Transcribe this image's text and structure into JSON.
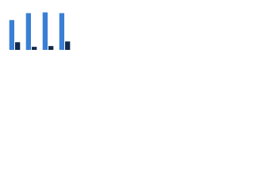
{
  "chart_data": {
    "type": "bar",
    "categories": [
      null,
      null,
      null,
      null
    ],
    "series": [
      {
        "color": "#3a7fd5",
        "values": [
          39,
          48,
          49,
          48
        ]
      },
      {
        "color": "#10294d",
        "values": [
          10,
          4,
          5,
          11
        ]
      }
    ],
    "ylim": [
      0,
      60
    ],
    "grid": false
  }
}
